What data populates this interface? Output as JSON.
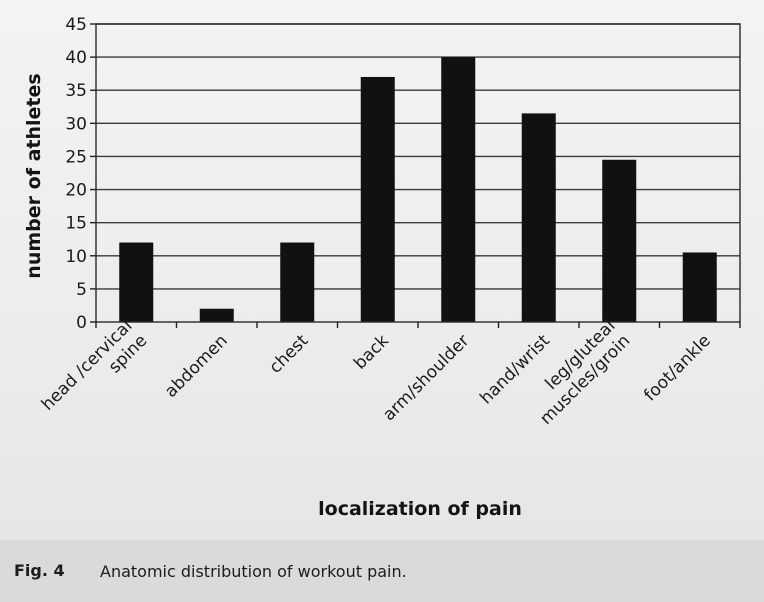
{
  "chart_data": {
    "type": "bar",
    "categories": [
      "head /cervical spine",
      "abdomen",
      "chest",
      "back",
      "arm/shoulder",
      "hand/wrist",
      "leg/gluteal muscles/groin",
      "foot/ankle"
    ],
    "category_lines": [
      [
        "head /cervical",
        "spine"
      ],
      [
        "abdomen"
      ],
      [
        "chest"
      ],
      [
        "back"
      ],
      [
        "arm/shoulder"
      ],
      [
        "hand/wrist"
      ],
      [
        "leg/gluteal",
        "muscles/groin"
      ],
      [
        "foot/ankle"
      ]
    ],
    "values": [
      12,
      2,
      12,
      37,
      40,
      31.5,
      24.5,
      10.5
    ],
    "xlabel": "localization of pain",
    "ylabel": "number of athletes",
    "ylim": [
      0,
      45
    ],
    "yticks": [
      0,
      5,
      10,
      15,
      20,
      25,
      30,
      35,
      40,
      45
    ],
    "grid": true,
    "bar_color": "#111111",
    "grid_color": "#3a3a3a"
  },
  "caption": {
    "label": "Fig. 4",
    "text": "Anatomic distribution of workout pain."
  }
}
